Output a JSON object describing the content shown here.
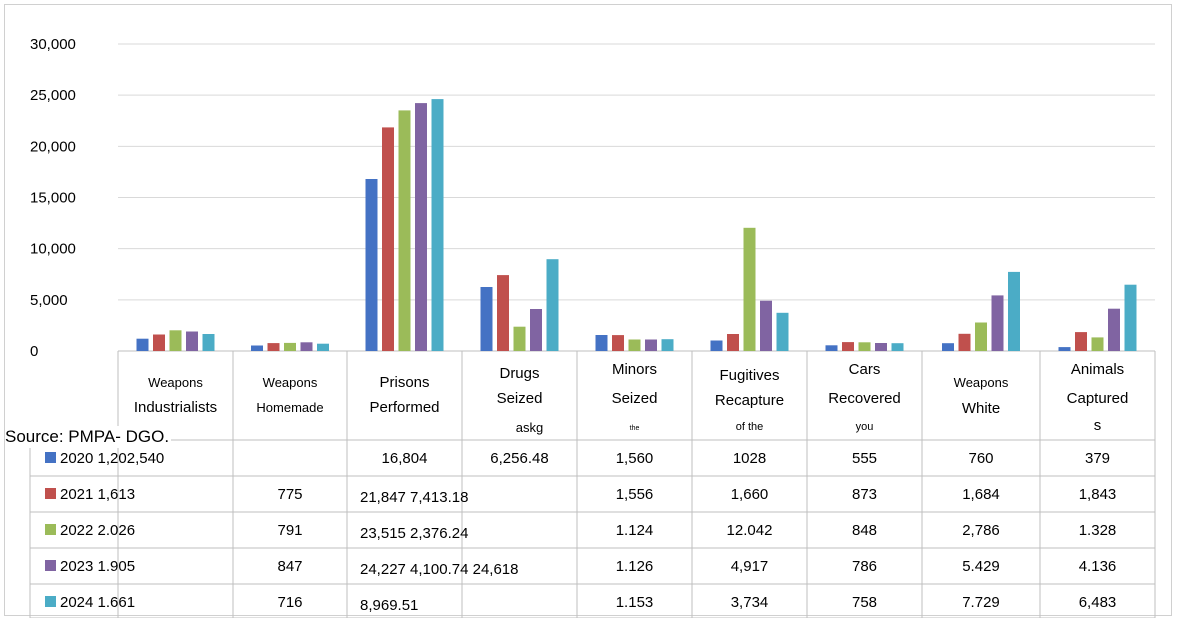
{
  "source": "Source: PMPA- DGO.",
  "chart_data": {
    "type": "bar",
    "ylim": [
      0,
      30000
    ],
    "yticks": [
      "0",
      "5,000",
      "10,000",
      "15,000",
      "20,000",
      "25,000",
      "30,000"
    ],
    "grid": true,
    "legend": "table-left",
    "categories": [
      [
        "Weapons",
        "Industrialists"
      ],
      [
        "Weapons",
        "Homemade"
      ],
      [
        "Prisons",
        "Performed"
      ],
      [
        "Drugs",
        "Seized",
        "askg"
      ],
      [
        "Minors",
        "Seized",
        "the"
      ],
      [
        "Fugitives",
        "Recapture",
        "of the"
      ],
      [
        "Cars",
        "Recovered",
        "you"
      ],
      [
        "Weapons",
        "White"
      ],
      [
        "Animals",
        "Captured",
        "s"
      ]
    ],
    "colors": [
      "#4472c4",
      "#c0504d",
      "#9bbb59",
      "#8064a2",
      "#4bacc6"
    ],
    "series": [
      {
        "name": "2020",
        "values": [
          1202,
          540,
          16804,
          6256,
          1560,
          1028,
          555,
          760,
          379
        ]
      },
      {
        "name": "2021",
        "values": [
          1613,
          775,
          21847,
          7413,
          1556,
          1660,
          873,
          1684,
          1843
        ]
      },
      {
        "name": "2022",
        "values": [
          2026,
          791,
          23515,
          2376,
          1124,
          12042,
          848,
          2786,
          1328
        ]
      },
      {
        "name": "2023",
        "values": [
          1905,
          847,
          24227,
          4100,
          1126,
          4917,
          786,
          5429,
          4136
        ]
      },
      {
        "name": "2024",
        "values": [
          1661,
          716,
          24618,
          8969,
          1153,
          3734,
          758,
          7729,
          6483
        ]
      }
    ],
    "table": [
      [
        "2020 1,202,540",
        "",
        "16,804",
        "6,256.48",
        "1,560",
        "1028",
        "555",
        "760",
        "379"
      ],
      [
        "2021 1,613",
        "775",
        "21,847 7,413.18",
        "",
        "1,556",
        "1,660",
        "873",
        "1,684",
        "1,843"
      ],
      [
        "2022 2.026",
        "791",
        "23,515 2,376.24",
        "",
        "1.124",
        "12.042",
        "848",
        "2,786",
        "1.328"
      ],
      [
        "2023 1.905",
        "847",
        "24,227 4,100.74 24,618",
        "",
        "1.126",
        "4,917",
        "786",
        "5.429",
        "4.136"
      ],
      [
        "2024 1.661",
        "716",
        "8,969.51",
        "",
        "1.153",
        "3,734",
        "758",
        "7.729",
        "6,483"
      ]
    ]
  }
}
